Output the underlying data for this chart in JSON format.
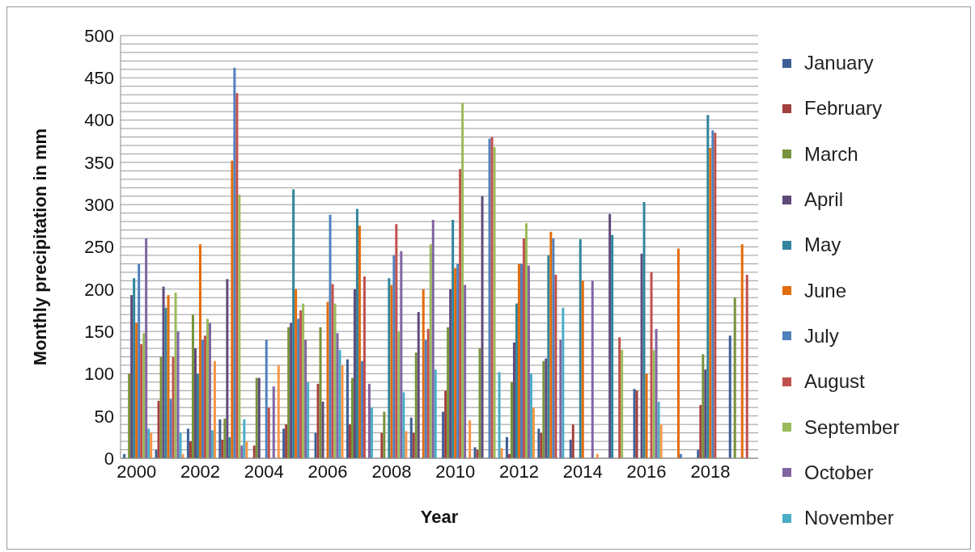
{
  "chart_data": {
    "type": "bar",
    "xlabel": "Year",
    "ylabel": "Monthly precipitation in mm",
    "categories": [
      "2000",
      null,
      "2002",
      null,
      "2004",
      null,
      "2006",
      null,
      "2008",
      null,
      "2010",
      null,
      "2012",
      null,
      "2014",
      null,
      "2016",
      null,
      "2018",
      null
    ],
    "series": [
      {
        "name": "January",
        "color": "#3c5f96",
        "values": [
          5,
          10,
          35,
          46,
          0,
          35,
          30,
          117,
          0,
          48,
          55,
          13,
          25,
          35,
          22,
          0,
          82,
          0,
          10,
          145
        ]
      },
      {
        "name": "February",
        "color": "#a33f3c",
        "values": [
          null,
          68,
          20,
          22,
          15,
          40,
          88,
          40,
          30,
          30,
          80,
          10,
          5,
          30,
          40,
          0,
          80,
          0,
          63,
          0
        ]
      },
      {
        "name": "March",
        "color": "#77933c",
        "values": [
          100,
          120,
          170,
          47,
          95,
          155,
          155,
          95,
          55,
          125,
          155,
          130,
          90,
          115,
          0,
          0,
          0,
          0,
          123,
          190
        ]
      },
      {
        "name": "April",
        "color": "#604a7b",
        "values": [
          193,
          203,
          130,
          212,
          95,
          160,
          67,
          200,
          0,
          173,
          200,
          310,
          137,
          118,
          0,
          289,
          242,
          0,
          105,
          0
        ]
      },
      {
        "name": "May",
        "color": "#31859c",
        "values": [
          213,
          178,
          100,
          25,
          0,
          318,
          0,
          295,
          213,
          0,
          282,
          0,
          183,
          240,
          259,
          264,
          303,
          0,
          406,
          0
        ]
      },
      {
        "name": "June",
        "color": "#e46c0a",
        "values": [
          160,
          193,
          253,
          352,
          0,
          200,
          185,
          275,
          205,
          200,
          225,
          0,
          230,
          268,
          210,
          0,
          100,
          248,
          367,
          253
        ]
      },
      {
        "name": "July",
        "color": "#4f81bd",
        "values": [
          230,
          70,
          140,
          462,
          140,
          165,
          288,
          115,
          240,
          140,
          230,
          378,
          230,
          260,
          0,
          0,
          0,
          5,
          388,
          0
        ]
      },
      {
        "name": "August",
        "color": "#c0504d",
        "values": [
          135,
          120,
          145,
          432,
          60,
          175,
          206,
          215,
          277,
          153,
          342,
          380,
          260,
          217,
          0,
          143,
          220,
          0,
          385,
          217
        ]
      },
      {
        "name": "September",
        "color": "#9bbb59",
        "values": [
          148,
          196,
          165,
          312,
          0,
          183,
          183,
          0,
          150,
          253,
          420,
          368,
          278,
          0,
          0,
          128,
          128,
          0,
          0,
          0
        ]
      },
      {
        "name": "October",
        "color": "#8064a2",
        "values": [
          260,
          150,
          160,
          15,
          85,
          140,
          148,
          88,
          245,
          282,
          205,
          0,
          228,
          140,
          210,
          0,
          153,
          0,
          0,
          0
        ]
      },
      {
        "name": "November",
        "color": "#4bacc6",
        "values": [
          35,
          30,
          33,
          46,
          0,
          90,
          128,
          60,
          78,
          105,
          0,
          102,
          100,
          178,
          0,
          0,
          67,
          0,
          0,
          0
        ]
      },
      {
        "color": "#f79646",
        "values": [
          30,
          5,
          115,
          20,
          110,
          0,
          110,
          0,
          32,
          0,
          45,
          12,
          60,
          0,
          5,
          0,
          40,
          0,
          0,
          0
        ]
      }
    ],
    "ylim": [
      0,
      500
    ],
    "yticks": [
      0,
      {
        "value": 10,
        "label": null
      },
      {
        "value": 20,
        "label": null
      },
      {
        "value": 30,
        "label": null
      },
      {
        "value": 40,
        "label": null
      },
      50,
      {
        "value": 60,
        "label": null
      },
      {
        "value": 70,
        "label": null
      },
      {
        "value": 80,
        "label": null
      },
      {
        "value": 90,
        "label": null
      },
      100,
      {
        "value": 110,
        "label": null
      },
      {
        "value": 120,
        "label": null
      },
      {
        "value": 130,
        "label": null
      },
      {
        "value": 140,
        "label": null
      },
      150,
      {
        "value": 160,
        "label": null
      },
      {
        "value": 170,
        "label": null
      },
      {
        "value": 180,
        "label": null
      },
      {
        "value": 190,
        "label": null
      },
      200,
      {
        "value": 210,
        "label": null
      },
      {
        "value": 220,
        "label": null
      },
      {
        "value": 230,
        "label": null
      },
      {
        "value": 240,
        "label": null
      },
      250,
      {
        "value": 260,
        "label": null
      },
      {
        "value": 270,
        "label": null
      },
      {
        "value": 280,
        "label": null
      },
      {
        "value": 290,
        "label": null
      },
      300,
      {
        "value": 310,
        "label": null
      },
      {
        "value": 320,
        "label": null
      },
      {
        "value": 330,
        "label": null
      },
      {
        "value": 340,
        "label": null
      },
      350,
      {
        "value": 360,
        "label": null
      },
      {
        "value": 370,
        "label": null
      },
      {
        "value": 380,
        "label": null
      },
      {
        "value": 390,
        "label": null
      },
      400,
      {
        "value": 410,
        "label": null
      },
      {
        "value": 420,
        "label": null
      },
      {
        "value": 430,
        "label": null
      },
      {
        "value": 440,
        "label": null
      },
      450,
      {
        "value": 460,
        "label": null
      },
      {
        "value": 470,
        "label": null
      },
      {
        "value": 480,
        "label": null
      },
      {
        "value": 490,
        "label": null
      },
      500
    ],
    "grid": "y",
    "legend": "right"
  }
}
